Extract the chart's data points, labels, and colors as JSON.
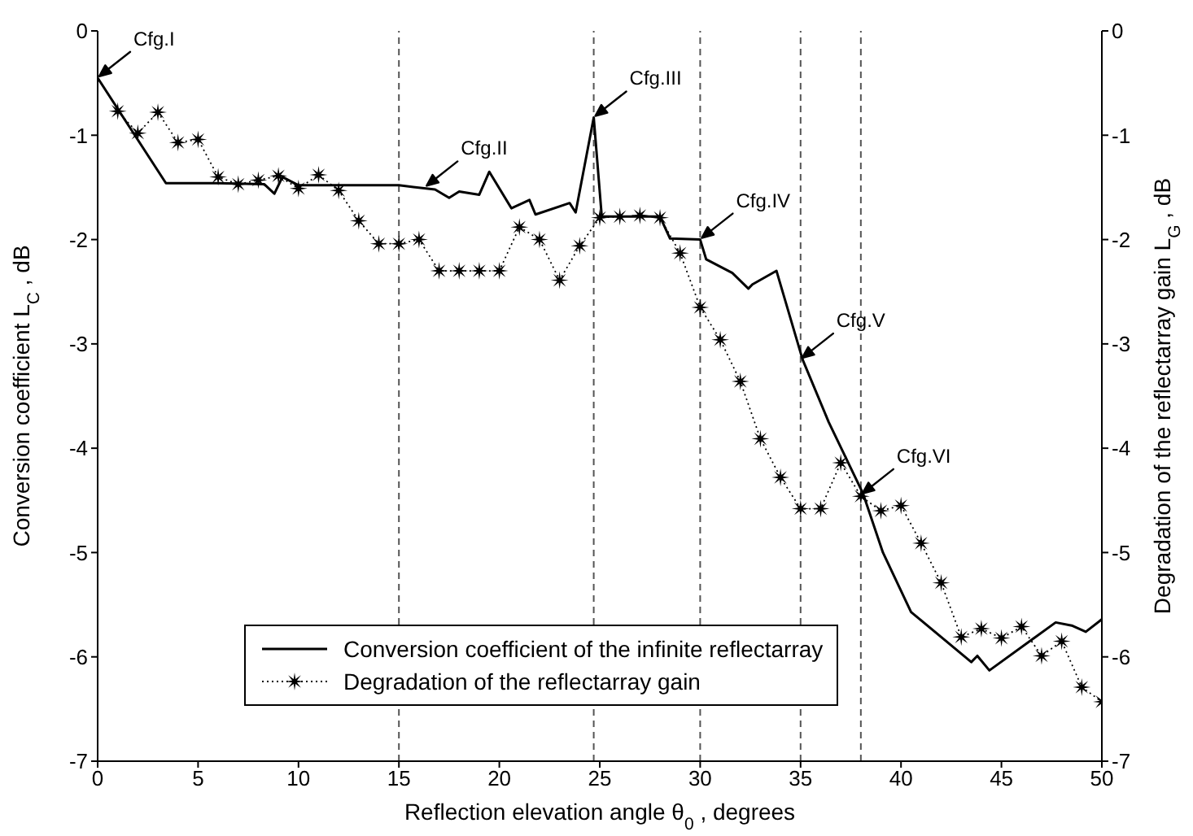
{
  "chart_data": {
    "type": "line",
    "xlabel": "Reflection elevation angle θ$_{0}$, degrees",
    "ylabel": "Conversion coefficient L$_{C}$ , dB",
    "y2label": "Degradation of the reflectarray gain L$_{G}$ , dB",
    "xlim": [
      0,
      50
    ],
    "xticks": [
      0,
      5,
      10,
      15,
      20,
      25,
      30,
      35,
      40,
      45,
      50
    ],
    "ylim": [
      -7,
      0
    ],
    "yticks": [
      -7,
      -6,
      -5,
      -4,
      -3,
      -2,
      -1,
      0
    ],
    "y2lim": [
      -7,
      0
    ],
    "y2ticks": [
      -7,
      -6,
      -5,
      -4,
      -3,
      -2,
      -1,
      0
    ],
    "series": [
      {
        "name": "Conversion coefficient of the infinite reflectarray",
        "color": "#000000",
        "marker": "none",
        "line_style": "solid",
        "x": [
          0,
          3.4,
          6,
          8.3,
          8.8,
          9.2,
          10,
          15,
          16.8,
          17.5,
          18,
          19,
          19.5,
          20.6,
          21.5,
          21.8,
          23.5,
          23.8,
          24.7,
          25.1,
          28,
          28.5,
          30,
          30.3,
          31.6,
          32.4,
          32.6,
          33.8,
          35.1,
          36.4,
          38.1,
          39.1,
          40.5,
          43.5,
          43.8,
          44.4,
          47.7,
          48.5,
          49.2,
          50
        ],
        "values": [
          -0.45,
          -1.46,
          -1.46,
          -1.47,
          -1.56,
          -1.4,
          -1.48,
          -1.48,
          -1.52,
          -1.6,
          -1.54,
          -1.57,
          -1.35,
          -1.7,
          -1.62,
          -1.76,
          -1.65,
          -1.74,
          -0.83,
          -1.78,
          -1.78,
          -1.99,
          -2.0,
          -2.19,
          -2.32,
          -2.47,
          -2.43,
          -2.3,
          -3.15,
          -3.75,
          -4.43,
          -5.0,
          -5.57,
          -6.05,
          -5.99,
          -6.13,
          -5.67,
          -5.7,
          -5.76,
          -5.64
        ]
      },
      {
        "name": "Degradation of the reflectarray gain",
        "color": "#000000",
        "axis": "y2",
        "marker": "star",
        "line_style": "dotted",
        "x": [
          1,
          2,
          3,
          4,
          5,
          6,
          7,
          8,
          9,
          10,
          11,
          12,
          13,
          14,
          15,
          16,
          17,
          18,
          19,
          20,
          21,
          22,
          23,
          24,
          25,
          26,
          27,
          28,
          29,
          30,
          31,
          32,
          33,
          34,
          35,
          36,
          37,
          38,
          39,
          40,
          41,
          42,
          43,
          44,
          45,
          46,
          47,
          48,
          49,
          50
        ],
        "values": [
          -0.77,
          -0.98,
          -0.78,
          -1.07,
          -1.04,
          -1.4,
          -1.47,
          -1.43,
          -1.39,
          -1.51,
          -1.38,
          -1.53,
          -1.82,
          -2.04,
          -2.04,
          -2.0,
          -2.3,
          -2.3,
          -2.3,
          -2.3,
          -1.88,
          -2.0,
          -2.39,
          -2.06,
          -1.79,
          -1.78,
          -1.77,
          -1.79,
          -2.13,
          -2.65,
          -2.96,
          -3.36,
          -3.91,
          -4.28,
          -4.58,
          -4.58,
          -4.14,
          -4.46,
          -4.6,
          -4.55,
          -4.91,
          -5.29,
          -5.81,
          -5.73,
          -5.82,
          -5.71,
          -5.99,
          -5.85,
          -6.29,
          -6.43
        ]
      }
    ],
    "ref_lines": [
      {
        "axis": "x",
        "value": 15,
        "line_style": "dashed",
        "color": "#555555"
      },
      {
        "axis": "x",
        "value": 24.7,
        "line_style": "dashed",
        "color": "#555555"
      },
      {
        "axis": "x",
        "value": 30,
        "line_style": "dashed",
        "color": "#555555"
      },
      {
        "axis": "x",
        "value": 35,
        "line_style": "dashed",
        "color": "#555555"
      },
      {
        "axis": "x",
        "value": 38,
        "line_style": "dashed",
        "color": "#555555"
      }
    ],
    "annotations": [
      {
        "text": "Cfg.I",
        "x": 0,
        "y": -0.45
      },
      {
        "text": "Cfg.II",
        "x": 16.3,
        "y": -1.5
      },
      {
        "text": "Cfg.III",
        "x": 24.7,
        "y": -0.83
      },
      {
        "text": "Cfg.IV",
        "x": 30,
        "y": -2.0
      },
      {
        "text": "Cfg.V",
        "x": 35,
        "y": -3.15
      },
      {
        "text": "Cfg.VI",
        "x": 38,
        "y": -4.45
      }
    ],
    "grid": false,
    "legend": "bottom left"
  }
}
